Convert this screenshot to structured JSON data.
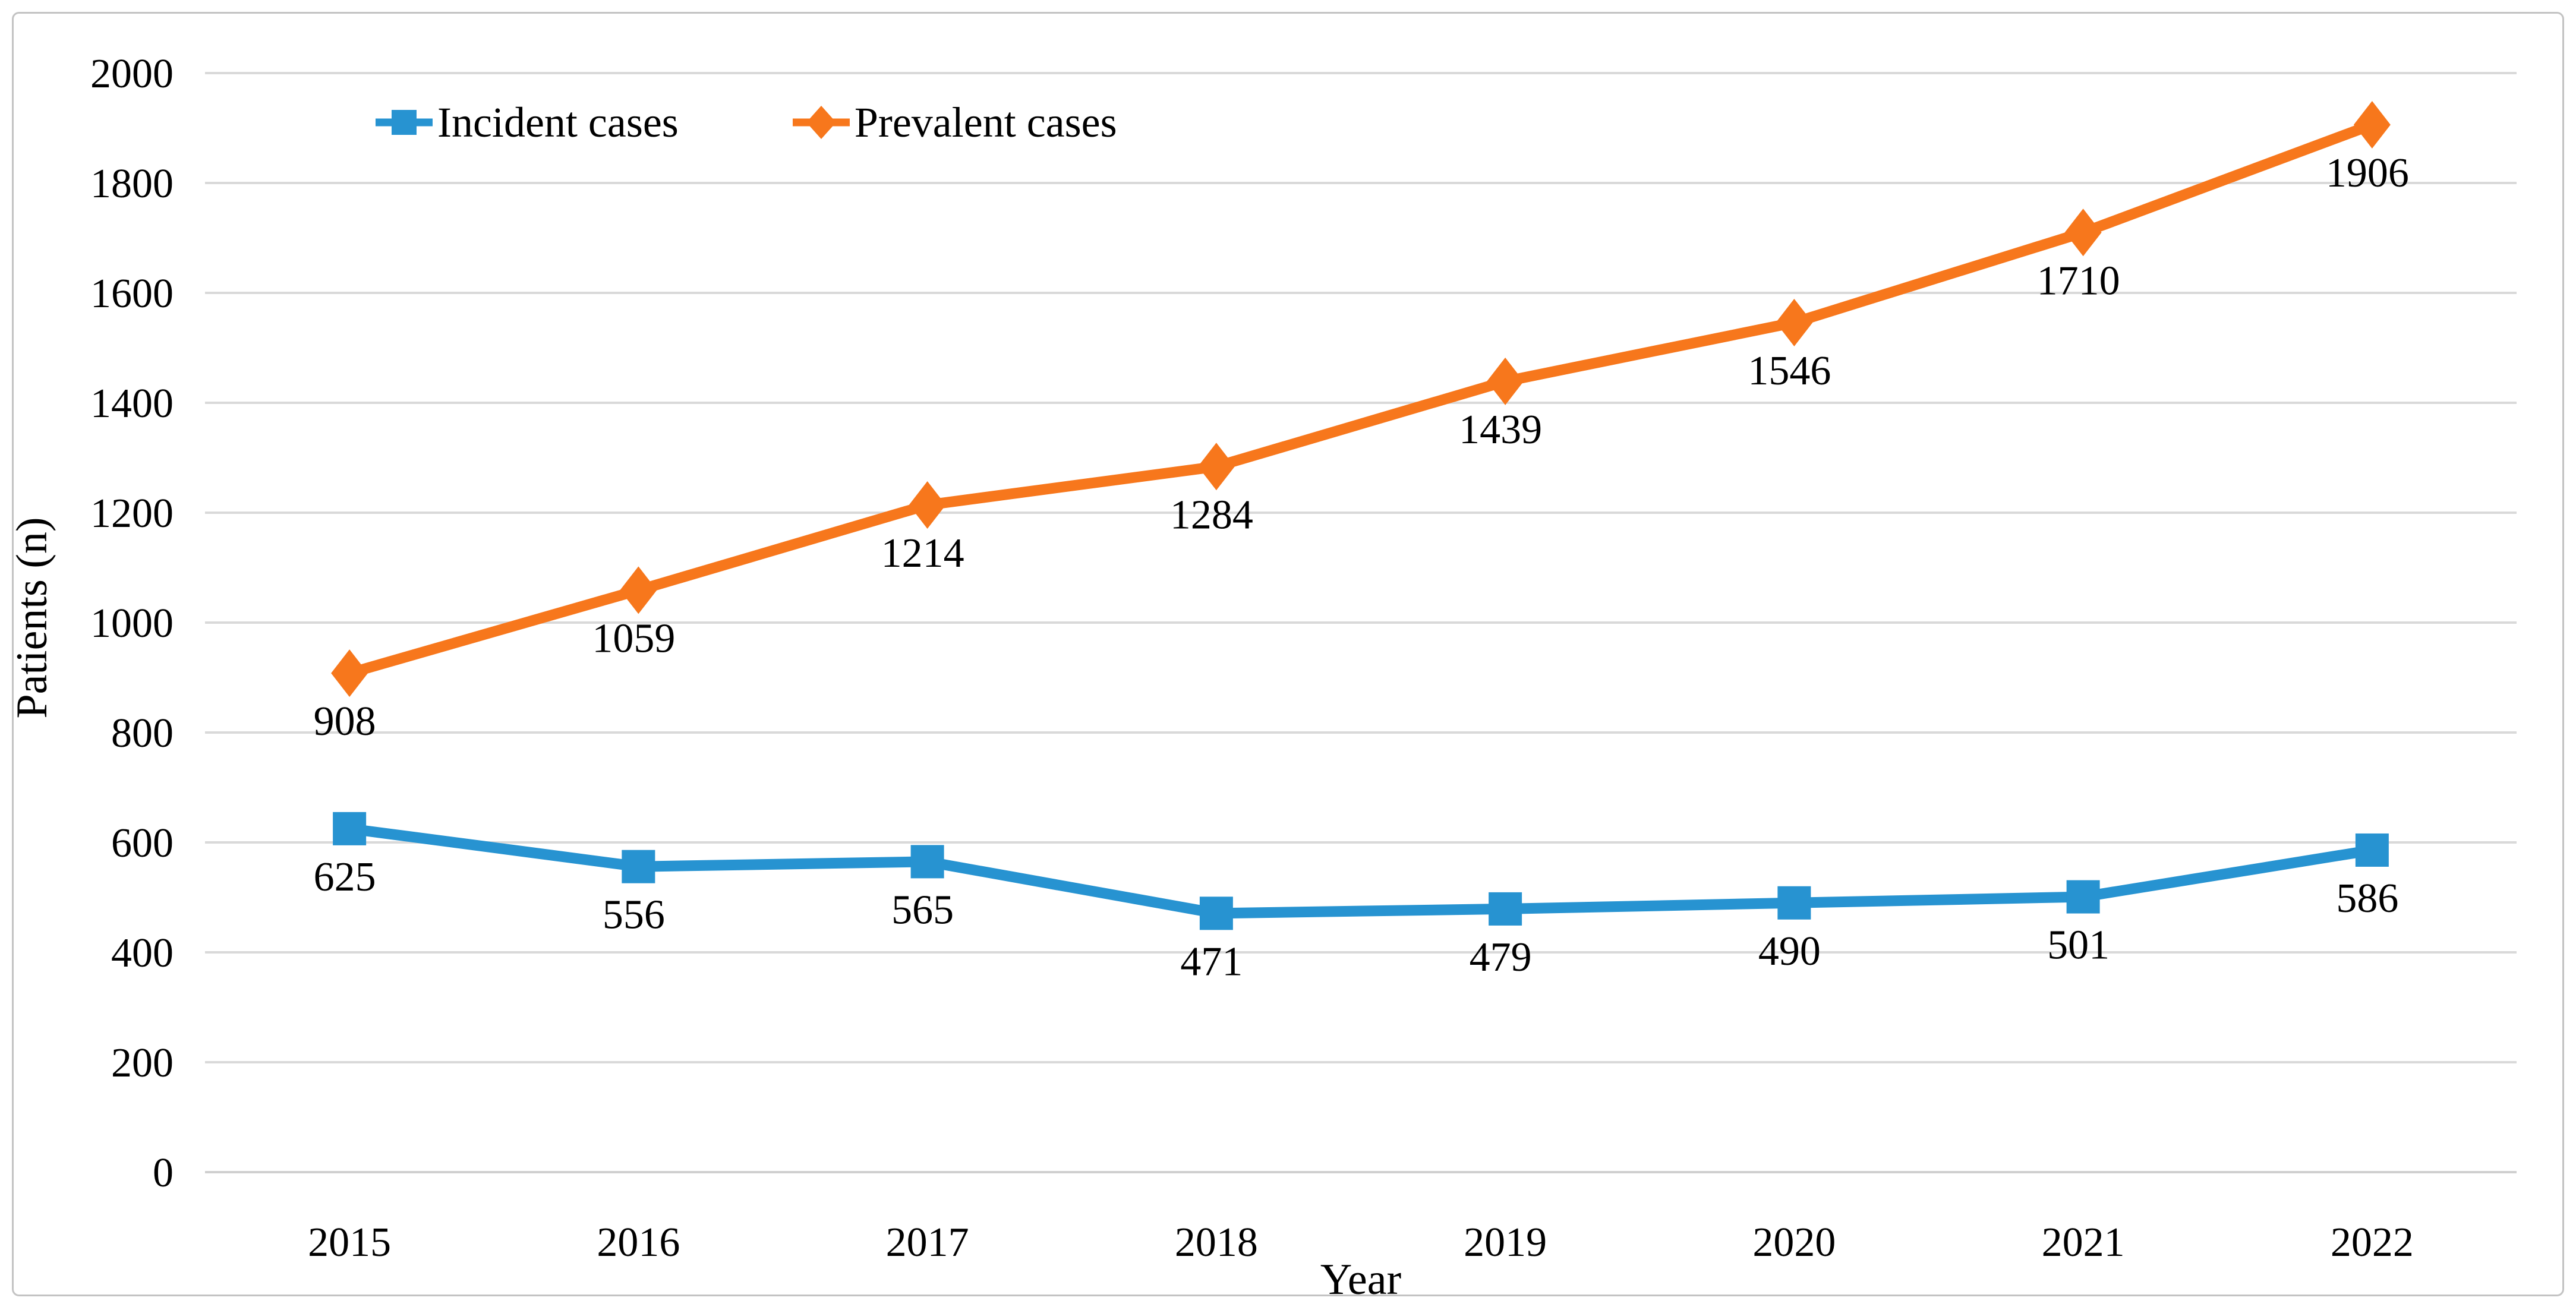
{
  "chart_data": {
    "type": "line",
    "categories": [
      "2015",
      "2016",
      "2017",
      "2018",
      "2019",
      "2020",
      "2021",
      "2022"
    ],
    "series": [
      {
        "name": "Incident cases",
        "marker": "square",
        "color": "#2793D1",
        "values": [
          625,
          556,
          565,
          471,
          479,
          490,
          501,
          586
        ]
      },
      {
        "name": "Prevalent cases",
        "marker": "diamond",
        "color": "#F7771C",
        "values": [
          908,
          1059,
          1214,
          1284,
          1439,
          1546,
          1710,
          1906
        ]
      }
    ],
    "xlabel": "Year",
    "ylabel": "Patients (n)",
    "ylim": [
      0,
      2000
    ],
    "ytick_step": 200,
    "yticks": [
      0,
      200,
      400,
      600,
      800,
      1000,
      1200,
      1400,
      1600,
      1800,
      2000
    ],
    "grid": true,
    "legend_position": "top-left-inside",
    "data_labels": true,
    "colors": {
      "gridline": "#D9D9D9",
      "axis_line": "#CFCFCF",
      "text": "#000000",
      "frame_border": "#C3C3C3",
      "background": "#FFFFFF"
    }
  }
}
